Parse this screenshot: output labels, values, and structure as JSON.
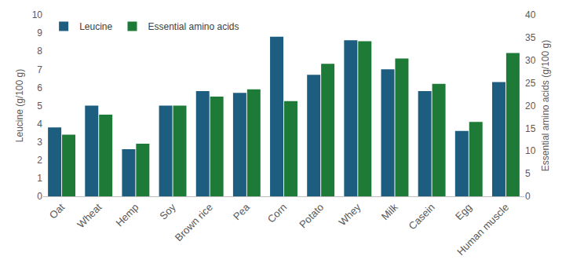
{
  "chart_data": {
    "type": "bar",
    "categories": [
      "Oat",
      "Wheat",
      "Hemp",
      "Soy",
      "Brown rice",
      "Pea",
      "Corn",
      "Potato",
      "Whey",
      "Milk",
      "Casein",
      "Egg",
      "Human muscle"
    ],
    "series": [
      {
        "name": "Leucine",
        "color": "#1d5d7f",
        "values": [
          3.8,
          5.0,
          2.6,
          5.0,
          5.8,
          5.7,
          8.8,
          6.7,
          8.6,
          7.0,
          5.8,
          3.6,
          6.3
        ]
      },
      {
        "name": "Essential amino acids",
        "color": "#1e7b37",
        "axis": "y2",
        "values": [
          13.6,
          18.0,
          11.6,
          20.0,
          22.0,
          23.6,
          21.0,
          29.2,
          34.2,
          30.4,
          24.8,
          16.4,
          31.6
        ]
      }
    ],
    "y_label": "Leucine (g/100 g)",
    "y2_label": "Essential amino acids (g/100 g)",
    "ylim": [
      0,
      10
    ],
    "yticks": [
      0,
      1,
      2,
      3,
      4,
      5,
      6,
      7,
      8,
      9,
      10
    ],
    "y2lim": [
      0,
      40
    ],
    "y2ticks": [
      0,
      5,
      10,
      15,
      20,
      25,
      30,
      35,
      40
    ],
    "grid": false,
    "legend": "top left"
  }
}
